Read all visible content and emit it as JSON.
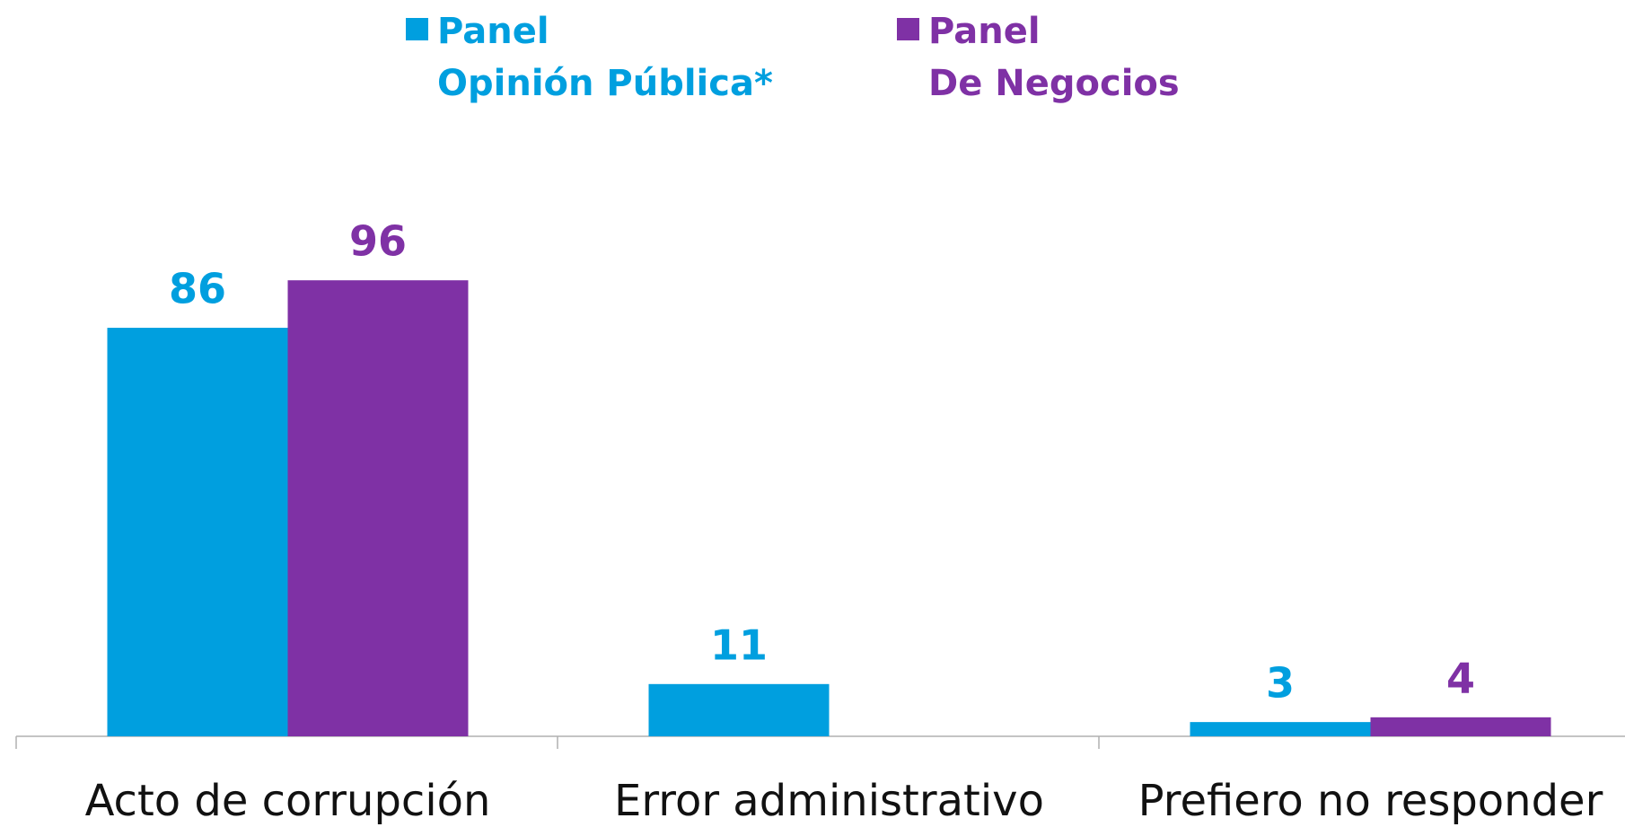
{
  "chart_data": {
    "type": "bar",
    "categories": [
      "Acto de corrupción",
      "Error administrativo",
      "Prefiero no responder"
    ],
    "series": [
      {
        "name": "Panel\nOpinión Pública*",
        "color": "#009fdf",
        "values": [
          86,
          11,
          3
        ]
      },
      {
        "name": "Panel\nDe Negocios",
        "color": "#7f31a5",
        "values": [
          96,
          null,
          4
        ]
      }
    ],
    "ylim": [
      0,
      100
    ]
  }
}
